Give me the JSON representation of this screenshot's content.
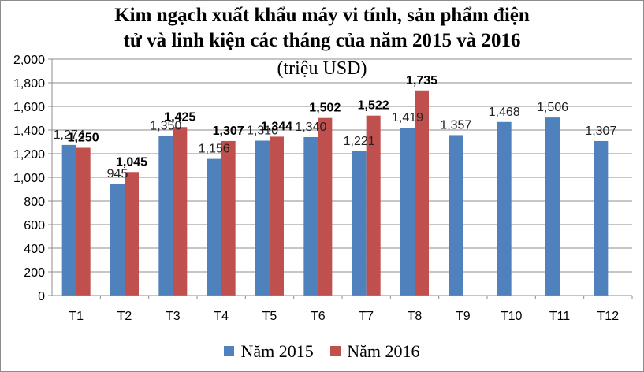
{
  "chart_data": {
    "type": "bar",
    "title_line1": "Kim ngạch xuất khẩu máy vi tính, sản phẩm điện",
    "title_line2": "tử và linh kiện các tháng của năm 2015 và 2016",
    "subtitle": "(triệu USD)",
    "categories": [
      "T1",
      "T2",
      "T3",
      "T4",
      "T5",
      "T6",
      "T7",
      "T8",
      "T9",
      "T10",
      "T11",
      "T12"
    ],
    "series": [
      {
        "name": "Năm 2015",
        "color": "#4f81bd",
        "values": [
          1274,
          945,
          1350,
          1156,
          1310,
          1340,
          1221,
          1419,
          1357,
          1468,
          1506,
          1307
        ]
      },
      {
        "name": "Năm 2016",
        "color": "#c0504d",
        "values": [
          1250,
          1045,
          1425,
          1307,
          1344,
          1502,
          1522,
          1735,
          null,
          null,
          null,
          null
        ]
      }
    ],
    "ylim": [
      0,
      2000
    ],
    "ytick_step": 200,
    "grid": true,
    "legend_position": "bottom"
  }
}
